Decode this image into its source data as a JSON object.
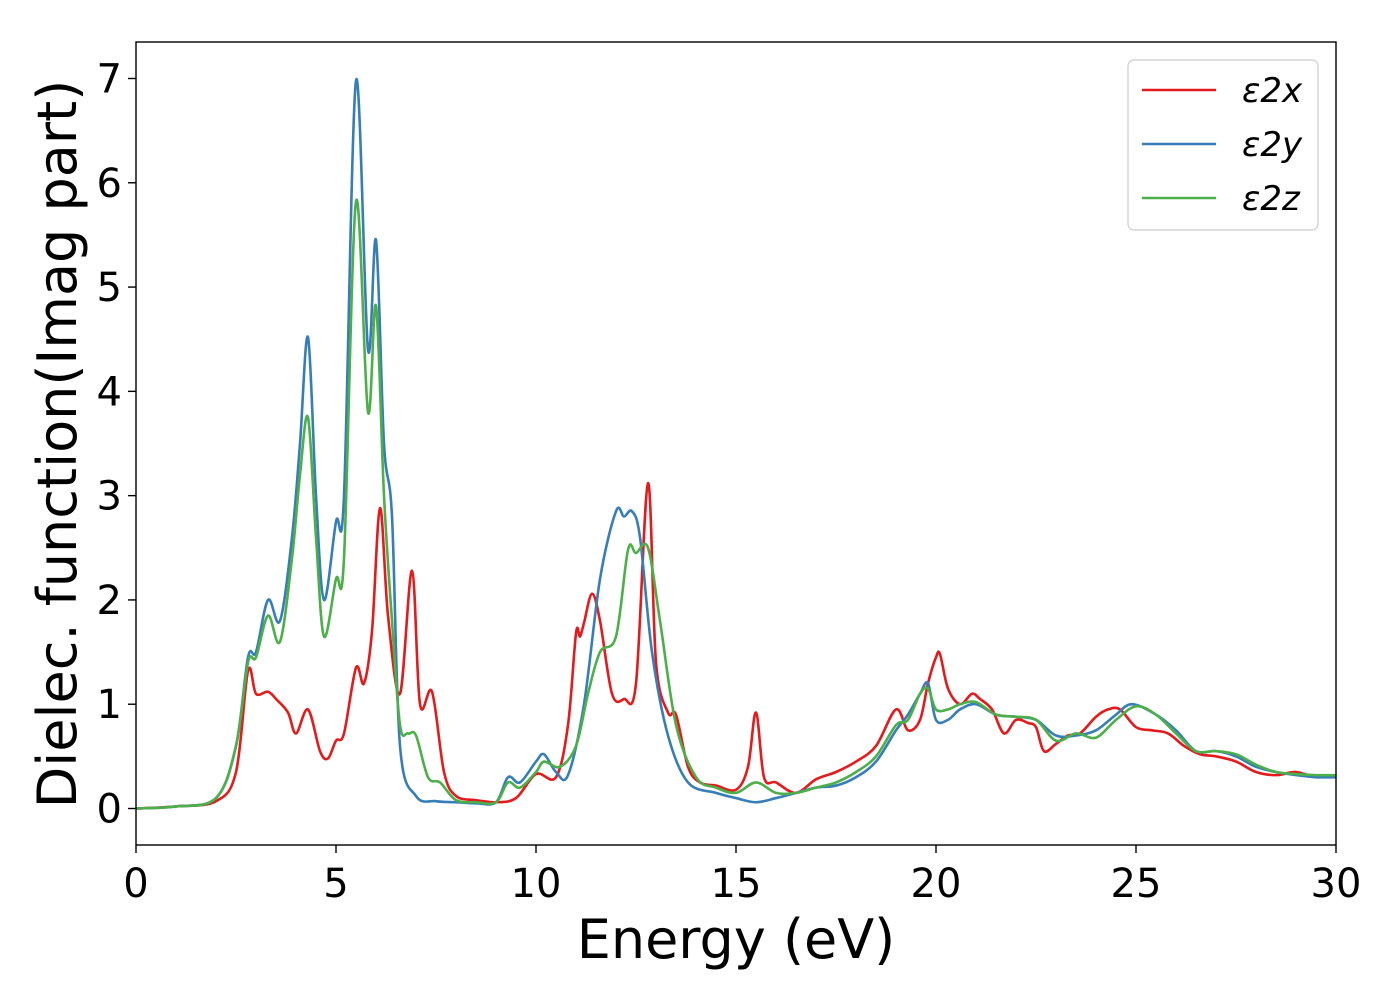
{
  "chart_data": {
    "type": "line",
    "title": "",
    "xlabel": "Energy (eV)",
    "ylabel": "Dielec. function(Imag part)",
    "xlim": [
      0,
      30
    ],
    "ylim": [
      -0.35,
      7.35
    ],
    "xticks": [
      0,
      5,
      10,
      15,
      20,
      25,
      30
    ],
    "yticks": [
      0,
      1,
      2,
      3,
      4,
      5,
      6,
      7
    ],
    "grid": false,
    "legend_position": "top-right",
    "series": [
      {
        "name": "ε2x",
        "color": "#e41a1c",
        "x": [
          0,
          1,
          2,
          2.5,
          2.8,
          3.0,
          3.3,
          3.5,
          3.8,
          4.0,
          4.3,
          4.6,
          4.8,
          5.0,
          5.2,
          5.5,
          5.7,
          5.9,
          6.1,
          6.3,
          6.6,
          6.9,
          7.1,
          7.4,
          7.7,
          8.0,
          8.5,
          9.0,
          9.5,
          10.0,
          10.5,
          10.8,
          11.0,
          11.1,
          11.2,
          11.4,
          11.6,
          11.9,
          12.2,
          12.5,
          12.8,
          13.0,
          13.3,
          13.5,
          13.8,
          14.1,
          14.5,
          15.0,
          15.3,
          15.5,
          15.7,
          16.0,
          16.5,
          17.0,
          17.5,
          18.0,
          18.5,
          19.0,
          19.3,
          19.6,
          19.8,
          20.0,
          20.1,
          20.3,
          20.6,
          20.9,
          21.1,
          21.4,
          21.7,
          22.0,
          22.3,
          22.5,
          22.7,
          23.0,
          23.3,
          23.6,
          24.0,
          24.3,
          24.6,
          25.0,
          25.4,
          25.8,
          26.2,
          26.6,
          27.0,
          27.5,
          28.0,
          28.5,
          29.0,
          29.5,
          30.0
        ],
        "y": [
          0.0,
          0.02,
          0.07,
          0.35,
          1.32,
          1.1,
          1.12,
          1.05,
          0.92,
          0.72,
          0.95,
          0.55,
          0.48,
          0.65,
          0.72,
          1.35,
          1.2,
          1.7,
          2.88,
          1.85,
          1.1,
          2.28,
          1.0,
          1.12,
          0.35,
          0.12,
          0.08,
          0.06,
          0.1,
          0.33,
          0.3,
          0.8,
          1.68,
          1.65,
          1.78,
          2.06,
          1.8,
          1.1,
          1.05,
          1.2,
          3.12,
          1.4,
          0.92,
          0.9,
          0.4,
          0.25,
          0.22,
          0.18,
          0.4,
          0.92,
          0.3,
          0.25,
          0.15,
          0.28,
          0.35,
          0.45,
          0.6,
          0.95,
          0.75,
          0.85,
          1.2,
          1.45,
          1.48,
          1.15,
          1.0,
          1.1,
          1.05,
          0.95,
          0.72,
          0.85,
          0.82,
          0.78,
          0.55,
          0.62,
          0.7,
          0.72,
          0.88,
          0.95,
          0.95,
          0.78,
          0.75,
          0.72,
          0.6,
          0.52,
          0.5,
          0.45,
          0.35,
          0.32,
          0.35,
          0.3,
          0.32
        ]
      },
      {
        "name": "ε2y",
        "color": "#377eb8",
        "x": [
          0,
          1,
          2,
          2.5,
          2.8,
          3.0,
          3.3,
          3.6,
          3.9,
          4.1,
          4.3,
          4.5,
          4.7,
          5.0,
          5.2,
          5.5,
          5.8,
          6.0,
          6.2,
          6.4,
          6.6,
          7.0,
          7.5,
          8.0,
          8.5,
          9.0,
          9.3,
          9.6,
          10.0,
          10.2,
          10.5,
          10.8,
          11.2,
          11.6,
          12.0,
          12.2,
          12.4,
          12.6,
          12.9,
          13.3,
          13.8,
          14.5,
          15.0,
          15.5,
          16.0,
          16.5,
          17.0,
          17.5,
          18.0,
          18.5,
          19.0,
          19.3,
          19.6,
          19.8,
          20.0,
          20.3,
          20.6,
          21.0,
          21.5,
          22.0,
          22.5,
          23.0,
          23.5,
          24.0,
          24.5,
          24.9,
          25.5,
          26.0,
          26.5,
          27.0,
          27.5,
          28.0,
          28.5,
          29.0,
          29.5,
          30.0
        ],
        "y": [
          0.0,
          0.02,
          0.1,
          0.6,
          1.45,
          1.5,
          2.0,
          1.8,
          2.6,
          3.5,
          4.52,
          3.0,
          2.0,
          2.75,
          3.0,
          6.98,
          4.4,
          5.45,
          3.5,
          2.8,
          0.6,
          0.12,
          0.07,
          0.06,
          0.05,
          0.06,
          0.3,
          0.25,
          0.45,
          0.52,
          0.35,
          0.32,
          1.0,
          2.2,
          2.85,
          2.8,
          2.85,
          2.6,
          1.5,
          0.7,
          0.25,
          0.15,
          0.1,
          0.06,
          0.1,
          0.15,
          0.2,
          0.22,
          0.3,
          0.45,
          0.75,
          0.9,
          1.1,
          1.2,
          0.85,
          0.85,
          0.95,
          1.0,
          0.9,
          0.88,
          0.85,
          0.7,
          0.7,
          0.75,
          0.9,
          1.0,
          0.9,
          0.75,
          0.55,
          0.55,
          0.5,
          0.4,
          0.35,
          0.32,
          0.3,
          0.3
        ]
      },
      {
        "name": "ε2z",
        "color": "#4daf4a",
        "x": [
          0,
          1,
          2,
          2.5,
          2.8,
          3.0,
          3.3,
          3.6,
          3.9,
          4.1,
          4.3,
          4.5,
          4.7,
          5.0,
          5.2,
          5.5,
          5.8,
          6.0,
          6.2,
          6.4,
          6.6,
          6.8,
          7.0,
          7.3,
          7.6,
          8.0,
          8.5,
          9.0,
          9.3,
          9.6,
          10.0,
          10.2,
          10.6,
          11.0,
          11.3,
          11.6,
          12.0,
          12.3,
          12.5,
          12.8,
          13.1,
          13.5,
          14.0,
          14.5,
          15.0,
          15.5,
          16.0,
          16.5,
          17.0,
          17.5,
          18.0,
          18.5,
          19.0,
          19.3,
          19.6,
          19.8,
          20.0,
          20.3,
          20.6,
          21.0,
          21.5,
          22.0,
          22.5,
          23.0,
          23.5,
          24.0,
          24.5,
          25.0,
          25.5,
          26.0,
          26.5,
          27.0,
          27.5,
          28.0,
          28.5,
          29.0,
          29.5,
          30.0
        ],
        "y": [
          0.0,
          0.02,
          0.1,
          0.6,
          1.4,
          1.45,
          1.85,
          1.6,
          2.4,
          3.2,
          3.75,
          2.6,
          1.65,
          2.2,
          2.4,
          5.82,
          3.8,
          4.82,
          3.0,
          1.8,
          0.8,
          0.72,
          0.7,
          0.3,
          0.25,
          0.08,
          0.06,
          0.06,
          0.25,
          0.2,
          0.35,
          0.45,
          0.4,
          0.6,
          1.1,
          1.5,
          1.65,
          2.48,
          2.45,
          2.5,
          1.8,
          0.8,
          0.3,
          0.2,
          0.15,
          0.25,
          0.15,
          0.15,
          0.2,
          0.25,
          0.35,
          0.5,
          0.8,
          0.85,
          1.1,
          1.15,
          0.95,
          0.95,
          1.0,
          1.02,
          0.9,
          0.88,
          0.85,
          0.65,
          0.72,
          0.68,
          0.85,
          0.98,
          0.9,
          0.72,
          0.55,
          0.55,
          0.52,
          0.42,
          0.35,
          0.33,
          0.32,
          0.32
        ]
      }
    ]
  }
}
